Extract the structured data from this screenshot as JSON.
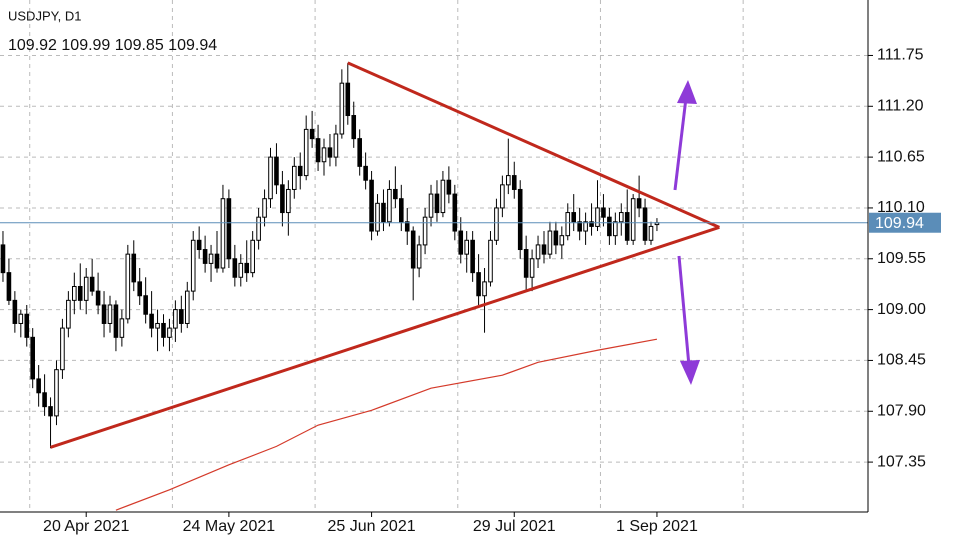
{
  "chart_data": {
    "type": "candlestick",
    "title": "USDJPY, D1",
    "categories": [
      null,
      null,
      null,
      null,
      null,
      null,
      null,
      null,
      null,
      null,
      null,
      null,
      null,
      null,
      "20 Apr 2021",
      null,
      null,
      null,
      null,
      null,
      null,
      null,
      null,
      null,
      null,
      null,
      null,
      null,
      null,
      null,
      null,
      null,
      null,
      null,
      null,
      null,
      null,
      null,
      "24 May 2021",
      null,
      null,
      null,
      null,
      null,
      null,
      null,
      null,
      null,
      null,
      null,
      null,
      null,
      null,
      null,
      null,
      null,
      null,
      null,
      null,
      null,
      null,
      null,
      "25 Jun 2021",
      null,
      null,
      null,
      null,
      null,
      null,
      null,
      null,
      null,
      null,
      null,
      null,
      null,
      null,
      null,
      null,
      null,
      null,
      null,
      null,
      null,
      null,
      null,
      "29 Jul 2021",
      null,
      null,
      null,
      null,
      null,
      null,
      null,
      null,
      null,
      null,
      null,
      null,
      null,
      null,
      null,
      null,
      null,
      null,
      null,
      null,
      null,
      null,
      null,
      "1 Sep 2021"
    ],
    "ohlc": [
      [
        109.7,
        109.85,
        109.3,
        109.4
      ],
      [
        109.4,
        109.55,
        109.05,
        109.1
      ],
      [
        109.1,
        109.2,
        108.75,
        108.85
      ],
      [
        108.85,
        109.0,
        108.7,
        108.95
      ],
      [
        108.95,
        109.05,
        108.6,
        108.7
      ],
      [
        108.7,
        108.8,
        108.15,
        108.25
      ],
      [
        108.25,
        108.4,
        107.95,
        108.1
      ],
      [
        108.1,
        108.3,
        107.85,
        107.95
      ],
      [
        107.95,
        108.05,
        107.5,
        107.85
      ],
      [
        107.85,
        108.45,
        107.75,
        108.35
      ],
      [
        108.35,
        108.9,
        108.25,
        108.8
      ],
      [
        108.8,
        109.2,
        108.7,
        109.1
      ],
      [
        109.1,
        109.4,
        108.95,
        109.25
      ],
      [
        109.25,
        109.5,
        109.0,
        109.1
      ],
      [
        109.1,
        109.45,
        108.95,
        109.35
      ],
      [
        109.35,
        109.55,
        109.15,
        109.2
      ],
      [
        109.2,
        109.4,
        108.95,
        109.05
      ],
      [
        109.05,
        109.2,
        108.7,
        108.85
      ],
      [
        108.85,
        109.15,
        108.75,
        109.05
      ],
      [
        109.05,
        109.1,
        108.55,
        108.7
      ],
      [
        108.7,
        109.0,
        108.6,
        108.9
      ],
      [
        108.9,
        109.7,
        108.85,
        109.6
      ],
      [
        109.6,
        109.75,
        109.2,
        109.3
      ],
      [
        109.3,
        109.45,
        109.05,
        109.15
      ],
      [
        109.15,
        109.35,
        108.85,
        108.95
      ],
      [
        108.95,
        109.2,
        108.7,
        108.8
      ],
      [
        108.8,
        109.0,
        108.55,
        108.85
      ],
      [
        108.85,
        108.95,
        108.6,
        108.7
      ],
      [
        108.7,
        108.9,
        108.55,
        108.8
      ],
      [
        108.8,
        109.1,
        108.65,
        109.0
      ],
      [
        109.0,
        109.15,
        108.75,
        108.85
      ],
      [
        108.85,
        109.3,
        108.8,
        109.2
      ],
      [
        109.2,
        109.85,
        109.1,
        109.75
      ],
      [
        109.75,
        109.9,
        109.55,
        109.65
      ],
      [
        109.65,
        109.8,
        109.4,
        109.5
      ],
      [
        109.5,
        109.7,
        109.3,
        109.6
      ],
      [
        109.6,
        109.85,
        109.4,
        109.45
      ],
      [
        109.45,
        110.35,
        109.4,
        110.2
      ],
      [
        110.2,
        110.3,
        109.45,
        109.55
      ],
      [
        109.55,
        109.7,
        109.25,
        109.35
      ],
      [
        109.35,
        109.6,
        109.25,
        109.5
      ],
      [
        109.5,
        109.75,
        109.3,
        109.4
      ],
      [
        109.4,
        109.85,
        109.35,
        109.75
      ],
      [
        109.75,
        110.1,
        109.65,
        110.0
      ],
      [
        110.0,
        110.3,
        109.9,
        110.2
      ],
      [
        110.2,
        110.75,
        110.1,
        110.65
      ],
      [
        110.65,
        110.8,
        110.25,
        110.35
      ],
      [
        110.35,
        110.5,
        109.9,
        110.05
      ],
      [
        110.05,
        110.4,
        109.8,
        110.3
      ],
      [
        110.3,
        110.65,
        110.2,
        110.55
      ],
      [
        110.55,
        110.7,
        110.3,
        110.45
      ],
      [
        110.45,
        111.1,
        110.4,
        110.95
      ],
      [
        110.95,
        111.15,
        110.75,
        110.85
      ],
      [
        110.85,
        111.0,
        110.5,
        110.6
      ],
      [
        110.6,
        110.85,
        110.45,
        110.75
      ],
      [
        110.75,
        110.9,
        110.55,
        110.65
      ],
      [
        110.65,
        111.0,
        110.55,
        110.9
      ],
      [
        110.9,
        111.6,
        110.85,
        111.45
      ],
      [
        111.45,
        111.67,
        111.0,
        111.1
      ],
      [
        111.1,
        111.25,
        110.75,
        110.85
      ],
      [
        110.85,
        110.95,
        110.45,
        110.55
      ],
      [
        110.55,
        110.7,
        110.3,
        110.4
      ],
      [
        110.4,
        110.5,
        109.75,
        109.85
      ],
      [
        109.85,
        110.25,
        109.8,
        110.15
      ],
      [
        110.15,
        110.3,
        109.85,
        109.95
      ],
      [
        109.95,
        110.4,
        109.9,
        110.3
      ],
      [
        110.3,
        110.55,
        110.1,
        110.2
      ],
      [
        110.2,
        110.35,
        109.85,
        109.95
      ],
      [
        109.95,
        110.1,
        109.7,
        109.85
      ],
      [
        109.85,
        109.9,
        109.1,
        109.45
      ],
      [
        109.45,
        109.8,
        109.35,
        109.7
      ],
      [
        109.7,
        110.1,
        109.6,
        110.0
      ],
      [
        110.0,
        110.35,
        109.9,
        110.25
      ],
      [
        110.25,
        110.4,
        109.95,
        110.05
      ],
      [
        110.05,
        110.5,
        110.0,
        110.4
      ],
      [
        110.4,
        110.55,
        110.15,
        110.25
      ],
      [
        110.25,
        110.35,
        109.75,
        109.85
      ],
      [
        109.85,
        110.0,
        109.5,
        109.6
      ],
      [
        109.6,
        109.85,
        109.4,
        109.75
      ],
      [
        109.75,
        109.85,
        109.3,
        109.4
      ],
      [
        109.4,
        109.6,
        109.05,
        109.15
      ],
      [
        109.15,
        109.45,
        108.75,
        109.3
      ],
      [
        109.3,
        109.85,
        109.25,
        109.75
      ],
      [
        109.75,
        110.2,
        109.7,
        110.1
      ],
      [
        110.1,
        110.45,
        110.0,
        110.35
      ],
      [
        110.35,
        110.85,
        110.25,
        110.45
      ],
      [
        110.45,
        110.6,
        110.2,
        110.3
      ],
      [
        110.3,
        110.4,
        109.55,
        109.65
      ],
      [
        109.65,
        109.8,
        109.2,
        109.35
      ],
      [
        109.35,
        109.65,
        109.2,
        109.55
      ],
      [
        109.55,
        109.8,
        109.45,
        109.7
      ],
      [
        109.7,
        109.85,
        109.5,
        109.6
      ],
      [
        109.6,
        109.95,
        109.55,
        109.85
      ],
      [
        109.85,
        109.95,
        109.6,
        109.7
      ],
      [
        109.7,
        109.9,
        109.55,
        109.8
      ],
      [
        109.8,
        110.15,
        109.75,
        110.05
      ],
      [
        110.05,
        110.25,
        109.85,
        109.95
      ],
      [
        109.95,
        110.1,
        109.75,
        109.85
      ],
      [
        109.85,
        110.05,
        109.7,
        109.95
      ],
      [
        109.95,
        110.15,
        109.8,
        109.9
      ],
      [
        109.9,
        110.4,
        109.85,
        110.1
      ],
      [
        110.1,
        110.25,
        109.9,
        110.0
      ],
      [
        110.0,
        110.1,
        109.7,
        109.8
      ],
      [
        109.8,
        110.05,
        109.7,
        109.95
      ],
      [
        109.95,
        110.15,
        109.8,
        110.05
      ],
      [
        110.05,
        110.3,
        109.7,
        109.75
      ],
      [
        109.75,
        110.25,
        109.7,
        110.2
      ],
      [
        110.2,
        110.45,
        110.0,
        110.1
      ],
      [
        110.1,
        110.2,
        109.7,
        109.75
      ],
      [
        109.75,
        109.95,
        109.7,
        109.9
      ],
      [
        109.92,
        109.99,
        109.85,
        109.94
      ]
    ],
    "xlim": [
      -0.5,
      145.5
    ],
    "ylim": [
      106.81,
      112.35
    ],
    "yticks": [
      107.35,
      {
        "value": 107.9,
        "label": "107.90"
      },
      108.45,
      {
        "value": 109,
        "label": "109.00"
      },
      109.55,
      {
        "value": 110.1,
        "label": "110.10"
      },
      110.65,
      {
        "value": 111.2,
        "label": "111.20"
      },
      111.75
    ],
    "grid": true,
    "bull_color": "#ffffff",
    "bear_color": "#000000",
    "price_line_color": "#5b8db8",
    "moving_average": {
      "color": "#d43a2a",
      "x": [
        19,
        28,
        38,
        46,
        53,
        62,
        72,
        84,
        90,
        100,
        110
      ],
      "values": [
        106.83,
        107.05,
        107.32,
        107.52,
        107.75,
        107.91,
        108.15,
        108.29,
        108.43,
        108.56,
        108.68
      ]
    },
    "trendlines": [
      {
        "color": "#c0281c",
        "x": [
          8,
          120.5
        ],
        "values": [
          107.51,
          109.89
        ]
      },
      {
        "color": "#c0281c",
        "x": [
          58,
          120.5
        ],
        "values": [
          111.67,
          109.89
        ]
      }
    ]
  }
}
